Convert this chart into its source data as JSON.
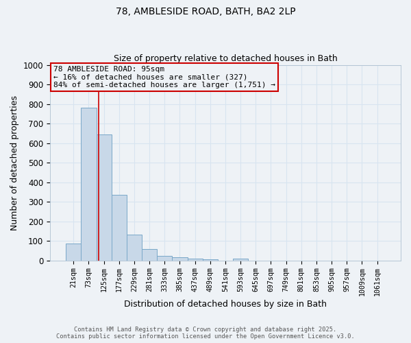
{
  "title1": "78, AMBLESIDE ROAD, BATH, BA2 2LP",
  "title2": "Size of property relative to detached houses in Bath",
  "xlabel": "Distribution of detached houses by size in Bath",
  "ylabel": "Number of detached properties",
  "bar_labels": [
    "21sqm",
    "73sqm",
    "125sqm",
    "177sqm",
    "229sqm",
    "281sqm",
    "333sqm",
    "385sqm",
    "437sqm",
    "489sqm",
    "541sqm",
    "593sqm",
    "645sqm",
    "697sqm",
    "749sqm",
    "801sqm",
    "853sqm",
    "905sqm",
    "957sqm",
    "1009sqm",
    "1061sqm"
  ],
  "bar_values": [
    85,
    780,
    645,
    335,
    133,
    57,
    24,
    18,
    10,
    6,
    0,
    10,
    0,
    0,
    0,
    0,
    0,
    0,
    0,
    0,
    0
  ],
  "bar_color": "#c8d8e8",
  "bar_edgecolor": "#7aa8c8",
  "ylim": [
    0,
    1000
  ],
  "yticks": [
    0,
    100,
    200,
    300,
    400,
    500,
    600,
    700,
    800,
    900,
    1000
  ],
  "red_line_x": 1.67,
  "annotation_title": "78 AMBLESIDE ROAD: 95sqm",
  "annotation_line1": "← 16% of detached houses are smaller (327)",
  "annotation_line2": "84% of semi-detached houses are larger (1,751) →",
  "annotation_color": "#cc0000",
  "footer1": "Contains HM Land Registry data © Crown copyright and database right 2025.",
  "footer2": "Contains public sector information licensed under the Open Government Licence v3.0.",
  "background_color": "#eef2f6",
  "grid_color": "#d8e4f0"
}
